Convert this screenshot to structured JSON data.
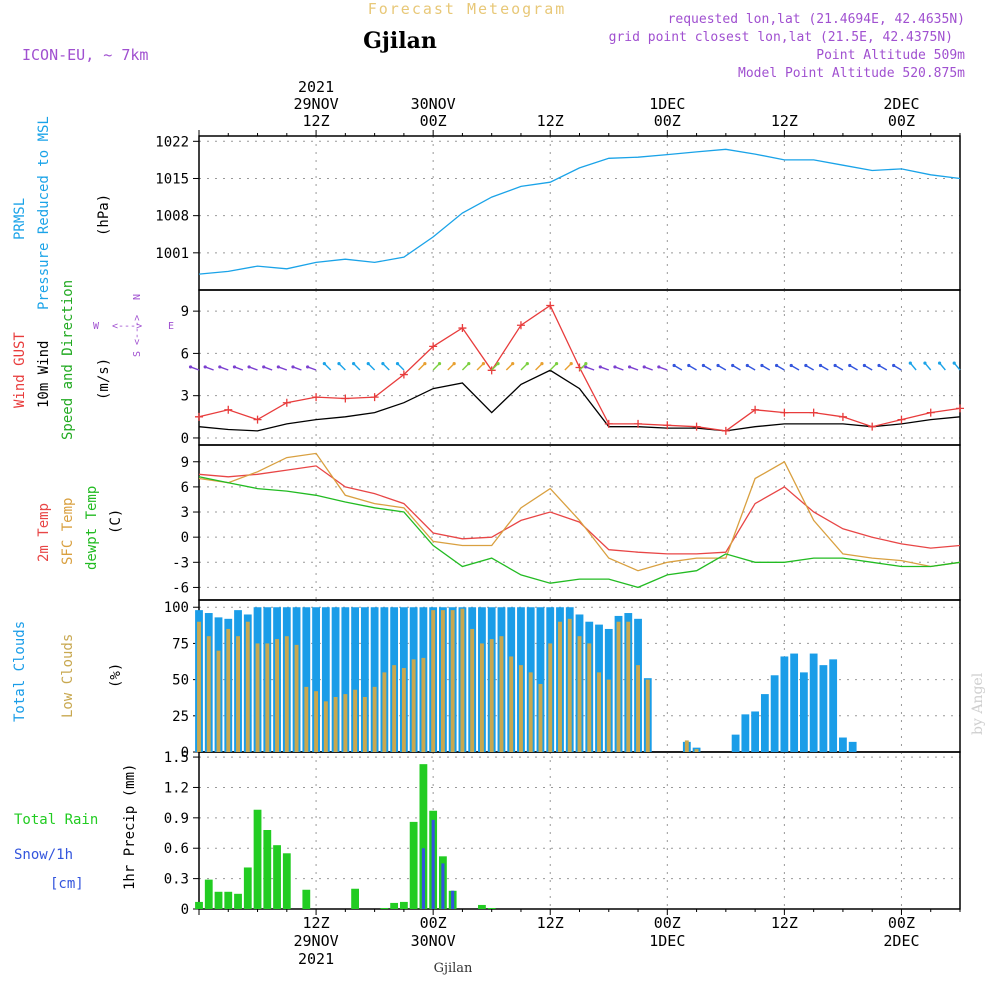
{
  "header": {
    "title": "Forecast Meteogram",
    "location": "Gjilan",
    "model": "ICON-EU, ~ 7km",
    "requested": "requested lon,lat (21.4694E, 42.4635N)",
    "grid_point": "grid point closest lon,lat (21.5E, 42.4375N)",
    "point_alt": "Point Altitude 509m",
    "model_alt": "Model Point Altitude 520.875m",
    "footer_location": "Gjilan",
    "watermark": "by Angel"
  },
  "time_axis": {
    "top_labels": [
      {
        "line1": "2021",
        "line2": "29NOV",
        "line3": "12Z"
      },
      {
        "line1": "",
        "line2": "30NOV",
        "line3": "00Z"
      },
      {
        "line1": "",
        "line2": "",
        "line3": "12Z"
      },
      {
        "line1": "",
        "line2": "1DEC",
        "line3": "00Z"
      },
      {
        "line1": "",
        "line2": "",
        "line3": "12Z"
      },
      {
        "line1": "",
        "line2": "2DEC",
        "line3": "00Z"
      }
    ],
    "bottom_labels": [
      {
        "line1": "12Z",
        "line2": "29NOV",
        "line3": "2021"
      },
      {
        "line1": "00Z",
        "line2": "30NOV",
        "line3": ""
      },
      {
        "line1": "12Z",
        "line2": "",
        "line3": ""
      },
      {
        "line1": "00Z",
        "line2": "1DEC",
        "line3": ""
      },
      {
        "line1": "12Z",
        "line2": "",
        "line3": ""
      },
      {
        "line1": "00Z",
        "line2": "2DEC",
        "line3": ""
      }
    ]
  },
  "panel_labels": {
    "p1": {
      "a": "PRMSL",
      "b": "Pressure Reduced to MSL",
      "unit": "(hPa)"
    },
    "p2": {
      "a": "Wind GUST",
      "b": "10m Wind",
      "c": "Speed and Direction",
      "unit": "(m/s)",
      "compass_n": "N",
      "compass_e": "E",
      "compass_w": "W",
      "compass_s": "S",
      "compass_arrows": "<--->"
    },
    "p3": {
      "a": "2m Temp",
      "b": "SFC Temp",
      "c": "dewpt Temp",
      "unit": "(C)"
    },
    "p4": {
      "a": "Total Clouds",
      "b": "Low Clouds",
      "unit": "(%)"
    },
    "p5": {
      "a": "Total  Rain",
      "b": "Snow/1h",
      "c": "[cm]",
      "unit": "1hr Precip (mm)"
    }
  },
  "colors": {
    "pressure": "#1aa3e8",
    "gust": "#e83c3c",
    "wind": "#000000",
    "t2m": "#e84646",
    "sfc": "#d9a040",
    "dew": "#22bb22",
    "total_cloud": "#1a9de8",
    "low_cloud": "#c8a850",
    "rain": "#22cc22",
    "snow": "#3355dd",
    "title": "#e8c878",
    "info": "#a050d0"
  },
  "chart_data": [
    {
      "type": "line",
      "name": "pressure",
      "x_hours": [
        0,
        3,
        6,
        9,
        12,
        15,
        18,
        21,
        24,
        27,
        30,
        33,
        36,
        39,
        42,
        45,
        48,
        51,
        54,
        57,
        60,
        63,
        66,
        69,
        72,
        75,
        78
      ],
      "values": [
        997.0,
        997.5,
        998.5,
        998.0,
        999.2,
        999.8,
        999.2,
        1000.2,
        1004.0,
        1008.5,
        1011.5,
        1013.5,
        1014.3,
        1017.0,
        1018.8,
        1019.0,
        1019.5,
        1020.0,
        1020.5,
        1019.6,
        1018.5,
        1018.5,
        1017.5,
        1016.5,
        1016.8,
        1015.7,
        1015.0
      ],
      "ylim": [
        994,
        1023
      ],
      "ticks": [
        1001,
        1008,
        1015,
        1022
      ]
    },
    {
      "type": "line",
      "name": "wind",
      "x_hours": [
        0,
        3,
        6,
        9,
        12,
        15,
        18,
        21,
        24,
        27,
        30,
        33,
        36,
        39,
        42,
        45,
        48,
        51,
        54,
        57,
        60,
        63,
        66,
        69,
        72,
        75,
        78
      ],
      "gust": [
        1.5,
        2.0,
        1.3,
        2.5,
        2.9,
        2.8,
        2.9,
        4.5,
        6.5,
        7.8,
        4.8,
        8.0,
        9.4,
        5.0,
        1.0,
        1.0,
        0.9,
        0.8,
        0.5,
        2.0,
        1.8,
        1.8,
        1.5,
        0.8,
        1.3,
        1.8,
        2.1
      ],
      "speed": [
        0.8,
        0.6,
        0.5,
        1.0,
        1.3,
        1.5,
        1.8,
        2.5,
        3.5,
        3.9,
        1.8,
        3.8,
        4.8,
        3.5,
        0.8,
        0.8,
        0.7,
        0.7,
        0.5,
        0.8,
        1.0,
        1.0,
        1.0,
        0.8,
        1.0,
        1.3,
        1.5
      ],
      "ylim": [
        -0.5,
        10.5
      ],
      "ticks": [
        0,
        3,
        6,
        9
      ]
    },
    {
      "type": "line",
      "name": "temperature",
      "x_hours": [
        0,
        3,
        6,
        9,
        12,
        15,
        18,
        21,
        24,
        27,
        30,
        33,
        36,
        39,
        42,
        45,
        48,
        51,
        54,
        57,
        60,
        63,
        66,
        69,
        72,
        75,
        78
      ],
      "t2m": [
        7.5,
        7.2,
        7.5,
        8.0,
        8.5,
        6.0,
        5.2,
        4.0,
        0.5,
        -0.2,
        0.0,
        2.0,
        3.0,
        1.8,
        -1.5,
        -1.8,
        -2.0,
        -2.0,
        -1.8,
        4.0,
        6.0,
        3.0,
        1.0,
        0.0,
        -0.8,
        -1.3,
        -1.0
      ],
      "sfc": [
        7.0,
        6.5,
        7.8,
        9.5,
        10.0,
        5.0,
        4.0,
        3.5,
        -0.5,
        -1.0,
        -1.0,
        3.5,
        5.8,
        2.0,
        -2.5,
        -4.0,
        -3.0,
        -2.5,
        -2.5,
        7.0,
        9.0,
        2.0,
        -2.0,
        -2.5,
        -2.8,
        -3.5,
        -3.0
      ],
      "dew": [
        7.2,
        6.5,
        5.8,
        5.5,
        5.0,
        4.2,
        3.5,
        3.0,
        -1.0,
        -3.5,
        -2.5,
        -4.5,
        -5.5,
        -5.0,
        -5.0,
        -6.0,
        -4.5,
        -4.0,
        -2.0,
        -3.0,
        -3.0,
        -2.5,
        -2.5,
        -3.0,
        -3.5,
        -3.5,
        -3.0
      ],
      "ylim": [
        -7.5,
        11
      ],
      "ticks": [
        -6,
        -3,
        0,
        3,
        6,
        9
      ]
    },
    {
      "type": "bar",
      "name": "clouds",
      "x_hours": [
        0,
        1,
        2,
        3,
        4,
        5,
        6,
        7,
        8,
        9,
        10,
        11,
        12,
        13,
        14,
        15,
        16,
        17,
        18,
        19,
        20,
        21,
        22,
        23,
        24,
        25,
        26,
        27,
        28,
        29,
        30,
        31,
        32,
        33,
        34,
        35,
        36,
        37,
        38,
        39,
        40,
        41,
        42,
        43,
        44,
        45,
        46,
        47,
        48,
        49,
        50,
        51,
        52,
        53,
        54,
        55,
        56,
        57,
        58,
        59,
        60,
        61,
        62,
        63,
        64,
        65,
        66,
        67,
        68,
        69,
        70,
        71,
        72,
        73,
        74,
        75,
        76,
        77,
        78
      ],
      "total": [
        98,
        96,
        93,
        92,
        98,
        95,
        100,
        100,
        100,
        100,
        100,
        100,
        100,
        100,
        100,
        100,
        100,
        100,
        100,
        100,
        100,
        100,
        100,
        100,
        100,
        100,
        100,
        100,
        100,
        100,
        100,
        100,
        100,
        100,
        100,
        100,
        100,
        100,
        100,
        95,
        90,
        88,
        85,
        94,
        96,
        92,
        51,
        0,
        0,
        0,
        7,
        3,
        0,
        0,
        0,
        12,
        26,
        28,
        40,
        53,
        66,
        68,
        55,
        68,
        60,
        64,
        10,
        7,
        0,
        0,
        0,
        0,
        0,
        0,
        0,
        0,
        0,
        0,
        0
      ],
      "low": [
        90,
        80,
        70,
        85,
        80,
        90,
        75,
        75,
        78,
        80,
        74,
        45,
        42,
        35,
        38,
        40,
        43,
        38,
        45,
        55,
        60,
        58,
        64,
        65,
        98,
        98,
        98,
        99,
        85,
        75,
        78,
        80,
        66,
        60,
        55,
        47,
        75,
        90,
        92,
        80,
        75,
        55,
        50,
        90,
        90,
        60,
        50,
        0,
        0,
        0,
        8,
        2,
        0,
        0,
        0,
        0,
        0,
        0,
        0,
        0,
        0,
        0,
        0,
        0,
        0,
        0,
        0,
        0,
        0,
        0,
        0,
        0,
        0,
        0,
        0,
        0,
        0,
        0,
        0
      ],
      "ylim": [
        0,
        105
      ],
      "ticks": [
        0,
        25,
        50,
        75,
        100
      ]
    },
    {
      "type": "bar",
      "name": "precip",
      "x_hours": [
        0,
        1,
        2,
        3,
        4,
        5,
        6,
        7,
        8,
        9,
        10,
        11,
        12,
        13,
        14,
        15,
        16,
        17,
        18,
        19,
        20,
        21,
        22,
        23,
        24,
        25,
        26,
        27,
        28,
        29,
        30,
        31,
        32,
        33,
        34,
        35,
        36,
        37,
        38
      ],
      "rain": [
        0.07,
        0.29,
        0.17,
        0.17,
        0.15,
        0.41,
        0.98,
        0.78,
        0.63,
        0.55,
        0,
        0.19,
        0,
        0,
        0,
        0,
        0.2,
        0,
        0,
        0.01,
        0.06,
        0.07,
        0.86,
        1.43,
        0.97,
        0.52,
        0.18,
        0,
        0,
        0.04,
        0.01,
        0,
        0,
        0,
        0,
        0,
        0,
        0,
        0
      ],
      "snow": [
        0,
        0,
        0,
        0,
        0,
        0,
        0,
        0,
        0,
        0,
        0,
        0,
        0,
        0,
        0,
        0,
        0,
        0,
        0,
        0,
        0,
        0,
        0,
        0.6,
        0.88,
        0.45,
        0.18,
        0,
        0,
        0,
        0,
        0,
        0,
        0,
        0,
        0,
        0,
        0,
        0
      ],
      "ylim": [
        0,
        1.55
      ],
      "ticks": [
        0,
        0.3,
        0.6,
        0.9,
        1.2,
        1.5
      ]
    }
  ]
}
